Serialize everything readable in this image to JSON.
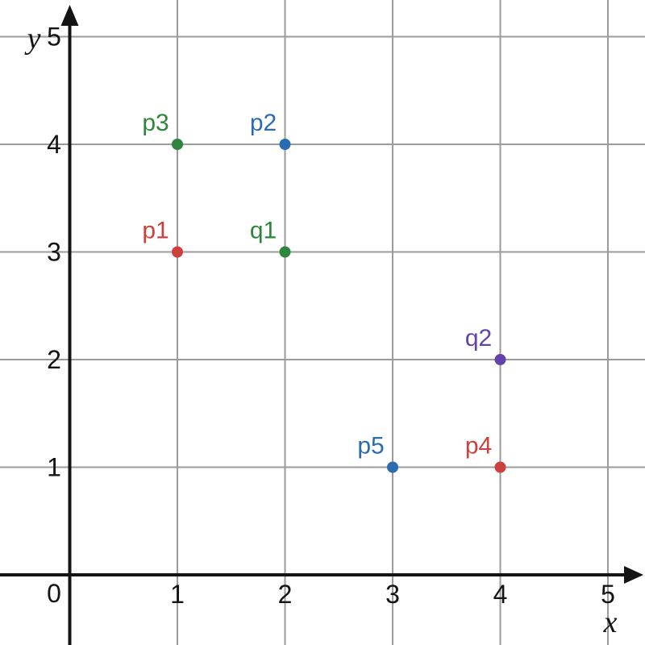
{
  "chart_data": {
    "type": "scatter",
    "title": "",
    "xlabel": "x",
    "ylabel": "y",
    "xlim": [
      -0.65,
      5.35
    ],
    "ylim": [
      -0.65,
      5.35
    ],
    "grid": true,
    "legend": "none",
    "origin_label": "0",
    "x_ticks": [
      0,
      1,
      2,
      3,
      4,
      5
    ],
    "y_ticks": [
      1,
      2,
      3,
      4,
      5
    ],
    "colors": {
      "red": "#CD413C",
      "blue": "#2B6CB0",
      "green": "#2E863C",
      "purple": "#6343AB",
      "grid": "#9B9B9B",
      "axis": "#141414",
      "background": "#FFFFFF"
    },
    "points": [
      {
        "label": "p1",
        "x": 1,
        "y": 3,
        "color_name": "red"
      },
      {
        "label": "p2",
        "x": 2,
        "y": 4,
        "color_name": "blue"
      },
      {
        "label": "p3",
        "x": 1,
        "y": 4,
        "color_name": "green"
      },
      {
        "label": "p4",
        "x": 4,
        "y": 1,
        "color_name": "red"
      },
      {
        "label": "p5",
        "x": 3,
        "y": 1,
        "color_name": "blue"
      },
      {
        "label": "q1",
        "x": 2,
        "y": 3,
        "color_name": "green"
      },
      {
        "label": "q2",
        "x": 4,
        "y": 2,
        "color_name": "purple"
      }
    ]
  }
}
